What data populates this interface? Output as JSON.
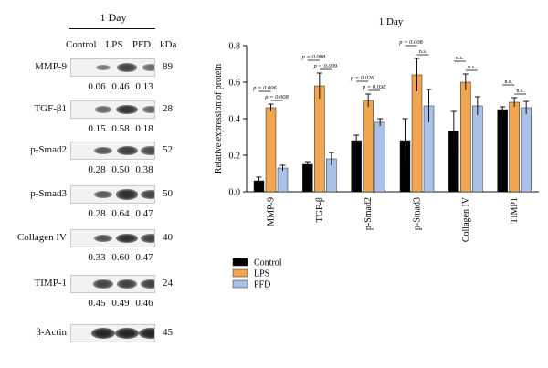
{
  "blot": {
    "title": "1 Day",
    "lanes": [
      "Control",
      "LPS",
      "PFD"
    ],
    "unit": "kDa",
    "rows": [
      {
        "marker": "MMP-9",
        "kda": "89",
        "values": [
          "0.06",
          "0.46",
          "0.13"
        ]
      },
      {
        "marker": "TGF-β1",
        "kda": "28",
        "values": [
          "0.15",
          "0.58",
          "0.18"
        ]
      },
      {
        "marker": "p-Smad2",
        "kda": "52",
        "values": [
          "0.28",
          "0.50",
          "0.38"
        ]
      },
      {
        "marker": "p-Smad3",
        "kda": "50",
        "values": [
          "0.28",
          "0.64",
          "0.47"
        ]
      },
      {
        "marker": "Collagen IV",
        "kda": "40",
        "values": [
          "0.33",
          "0.60",
          "0.47"
        ]
      },
      {
        "marker": "TIMP-1",
        "kda": "24",
        "values": [
          "0.45",
          "0.49",
          "0.46"
        ]
      },
      {
        "marker": "β-Actin",
        "kda": "45",
        "values": []
      }
    ]
  },
  "chart_data": {
    "type": "bar",
    "title": "1 Day",
    "ylabel": "Relative expression of protein",
    "ylim": [
      0,
      0.8
    ],
    "yticks": [
      "0.0",
      "0.2",
      "0.4",
      "0.6",
      "0.8"
    ],
    "categories": [
      "MMP-9",
      "TGF-β",
      "p-Smad2",
      "p-Smad3",
      "Collagen IV",
      "TIMP1"
    ],
    "series": [
      {
        "name": "Control",
        "color": "#000000",
        "values": [
          0.06,
          0.15,
          0.28,
          0.28,
          0.33,
          0.45
        ],
        "errors": [
          0.02,
          0.015,
          0.03,
          0.12,
          0.11,
          0.015
        ]
      },
      {
        "name": "LPS",
        "color": "#f0a550",
        "values": [
          0.46,
          0.58,
          0.5,
          0.64,
          0.6,
          0.49
        ],
        "errors": [
          0.02,
          0.07,
          0.035,
          0.09,
          0.045,
          0.025
        ]
      },
      {
        "name": "PFD",
        "color": "#a9c1e6",
        "values": [
          0.13,
          0.18,
          0.38,
          0.47,
          0.47,
          0.46
        ],
        "errors": [
          0.015,
          0.035,
          0.02,
          0.09,
          0.05,
          0.035
        ]
      }
    ],
    "annotations": [
      {
        "category": 0,
        "from": 0,
        "to": 1,
        "text": "p = 0.006"
      },
      {
        "category": 0,
        "from": 1,
        "to": 2,
        "text": "p = 0.008"
      },
      {
        "category": 1,
        "from": 0,
        "to": 1,
        "text": "p = 0.008"
      },
      {
        "category": 1,
        "from": 1,
        "to": 2,
        "text": "p = 0.009"
      },
      {
        "category": 2,
        "from": 0,
        "to": 1,
        "text": "p = 0.026"
      },
      {
        "category": 2,
        "from": 1,
        "to": 2,
        "text": "p = 0.038"
      },
      {
        "category": 3,
        "from": 0,
        "to": 1,
        "text": "p = 0.008"
      },
      {
        "category": 3,
        "from": 1,
        "to": 2,
        "text": "n.s."
      },
      {
        "category": 4,
        "from": 0,
        "to": 1,
        "text": "n.s."
      },
      {
        "category": 4,
        "from": 1,
        "to": 2,
        "text": "n.s."
      },
      {
        "category": 5,
        "from": 0,
        "to": 1,
        "text": "n.s."
      },
      {
        "category": 5,
        "from": 1,
        "to": 2,
        "text": "n.s."
      }
    ],
    "legend": {
      "position": "bottom-left",
      "entries": [
        "Control",
        "LPS",
        "PFD"
      ]
    },
    "grid": false
  }
}
